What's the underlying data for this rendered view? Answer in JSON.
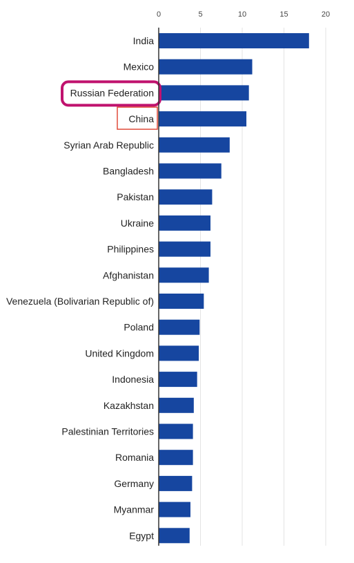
{
  "colors": {
    "bar": "#1646a0",
    "highlight_magenta": "#c0126e",
    "highlight_red": "#e04a3a"
  },
  "chart_data": {
    "type": "bar",
    "orientation": "horizontal",
    "title": "",
    "xlabel": "",
    "ylabel": "",
    "xlim": [
      0,
      20
    ],
    "x_ticks": [
      0,
      5,
      10,
      15,
      20
    ],
    "grid": true,
    "categories": [
      "India",
      "Mexico",
      "Russian Federation",
      "China",
      "Syrian Arab Republic",
      "Bangladesh",
      "Pakistan",
      "Ukraine",
      "Philippines",
      "Afghanistan",
      "Venezuela (Bolivarian Republic of)",
      "Poland",
      "United Kingdom",
      "Indonesia",
      "Kazakhstan",
      "Palestinian Territories",
      "Romania",
      "Germany",
      "Myanmar",
      "Egypt"
    ],
    "values": [
      18.0,
      11.2,
      10.8,
      10.5,
      8.5,
      7.5,
      6.4,
      6.2,
      6.2,
      6.0,
      5.4,
      4.9,
      4.8,
      4.6,
      4.2,
      4.1,
      4.1,
      4.0,
      3.8,
      3.7
    ],
    "highlighted": [
      {
        "category": "Russian Federation",
        "style": "rounded-magenta"
      },
      {
        "category": "China",
        "style": "thin-red"
      }
    ]
  }
}
